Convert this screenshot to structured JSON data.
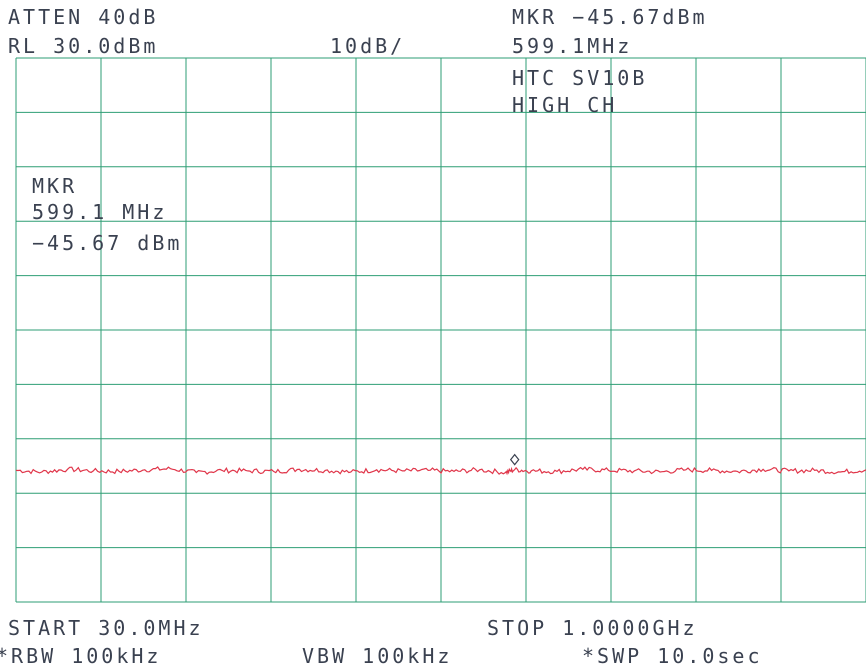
{
  "header": {
    "atten": "ATTEN 40dB",
    "ref_level": "RL 30.0dBm",
    "scale": "10dB/",
    "marker_level": "MKR −45.67dBm",
    "marker_freq": "599.1MHz"
  },
  "annotations": {
    "device_line1": "HTC SV10B",
    "device_line2": "HIGH CH",
    "mkr_title": "MKR",
    "mkr_freq": "599.1 MHz",
    "mkr_level": "−45.67 dBm"
  },
  "footer": {
    "start": "START 30.0MHz",
    "stop": "STOP 1.0000GHz",
    "rbw": "*RBW 100kHz",
    "vbw": "VBW 100kHz",
    "sweep": "*SWP 10.0sec"
  },
  "colors": {
    "grid": "#2e9e74",
    "trace": "#e0364a",
    "text": "#3a4150",
    "marker": "#3a4150"
  },
  "chart_data": {
    "type": "line",
    "title": "",
    "xlabel": "",
    "ylabel": "",
    "x_unit": "MHz",
    "y_unit": "dBm",
    "xlim": [
      30.0,
      1000.0
    ],
    "ylim": [
      -70.0,
      30.0
    ],
    "grid": true,
    "grid_divisions_x": 10,
    "grid_divisions_y": 10,
    "marker": {
      "x": 599.1,
      "y": -45.67
    },
    "series": [
      {
        "x": [
          30,
          59.4,
          88.8,
          118.2,
          147.6,
          177,
          206.4,
          235.8,
          265.2,
          294.6,
          324,
          353.4,
          382.8,
          412.2,
          441.6,
          471,
          500.4,
          529.8,
          559.2,
          588.6,
          599.1,
          618,
          647.4,
          676.8,
          706.2,
          735.6,
          765,
          794.4,
          823.8,
          853.2,
          882.6,
          912,
          941.4,
          970.8,
          1000
        ],
        "y": [
          -45.8,
          -46.1,
          -45.6,
          -45.9,
          -46.0,
          -45.7,
          -45.5,
          -46.2,
          -45.8,
          -45.9,
          -46.0,
          -45.6,
          -45.8,
          -46.1,
          -45.7,
          -45.9,
          -45.8,
          -46.0,
          -45.7,
          -46.2,
          -45.67,
          -45.9,
          -46.0,
          -45.6,
          -45.8,
          -45.9,
          -46.1,
          -45.7,
          -45.8,
          -46.0,
          -45.6,
          -45.9,
          -45.8,
          -46.1,
          -45.7
        ]
      }
    ]
  }
}
